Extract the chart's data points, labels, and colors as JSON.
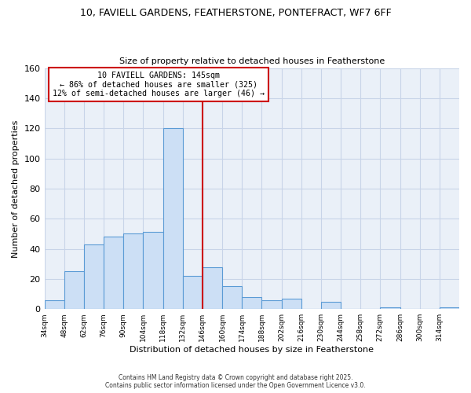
{
  "title_line1": "10, FAVIELL GARDENS, FEATHERSTONE, PONTEFRACT, WF7 6FF",
  "title_line2": "Size of property relative to detached houses in Featherstone",
  "xlabel": "Distribution of detached houses by size in Featherstone",
  "ylabel": "Number of detached properties",
  "bins": [
    34,
    48,
    62,
    76,
    90,
    104,
    118,
    132,
    146,
    160,
    174,
    188,
    202,
    216,
    230,
    244,
    258,
    272,
    286,
    300,
    314,
    328
  ],
  "bar_heights": [
    6,
    25,
    43,
    48,
    50,
    51,
    120,
    22,
    28,
    15,
    8,
    6,
    7,
    0,
    5,
    0,
    0,
    1,
    0,
    0,
    1
  ],
  "x_tick_labels": [
    "34sqm",
    "48sqm",
    "62sqm",
    "76sqm",
    "90sqm",
    "104sqm",
    "118sqm",
    "132sqm",
    "146sqm",
    "160sqm",
    "174sqm",
    "188sqm",
    "202sqm",
    "216sqm",
    "230sqm",
    "244sqm",
    "258sqm",
    "272sqm",
    "286sqm",
    "300sqm",
    "314sqm"
  ],
  "ylim": [
    0,
    160
  ],
  "yticks": [
    0,
    20,
    40,
    60,
    80,
    100,
    120,
    140,
    160
  ],
  "bar_color": "#ccdff5",
  "bar_edge_color": "#5b9bd5",
  "vline_x": 146,
  "vline_color": "#cc0000",
  "box_text_line1": "10 FAVIELL GARDENS: 145sqm",
  "box_text_line2": "← 86% of detached houses are smaller (325)",
  "box_text_line3": "12% of semi-detached houses are larger (46) →",
  "box_color": "#ffffff",
  "box_edge_color": "#cc0000",
  "footnote1": "Contains HM Land Registry data © Crown copyright and database right 2025.",
  "footnote2": "Contains public sector information licensed under the Open Government Licence v3.0.",
  "bg_color": "#ffffff",
  "plot_bg_color": "#eaf0f8",
  "grid_color": "#c8d4e8"
}
